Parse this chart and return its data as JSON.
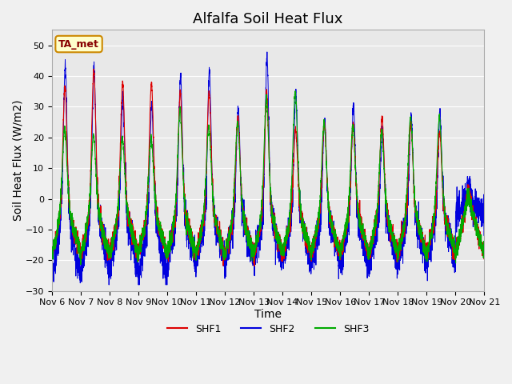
{
  "title": "Alfalfa Soil Heat Flux",
  "ylabel": "Soil Heat Flux (W/m2)",
  "xlabel": "Time",
  "ylim": [
    -30,
    55
  ],
  "yticks": [
    -30,
    -20,
    -10,
    0,
    10,
    20,
    30,
    40,
    50
  ],
  "xtick_labels": [
    "Nov 6",
    "Nov 7",
    "Nov 8",
    "Nov 9",
    "Nov 10",
    "Nov 11",
    "Nov 12",
    "Nov 13",
    "Nov 14",
    "Nov 15",
    "Nov 16",
    "Nov 17",
    "Nov 18",
    "Nov 19",
    "Nov 20",
    "Nov 21"
  ],
  "colors": {
    "SHF1": "#dd0000",
    "SHF2": "#0000dd",
    "SHF3": "#00aa00"
  },
  "legend_label_box": "TA_met",
  "legend_box_bg": "#ffffcc",
  "legend_box_edge": "#cc8800",
  "plot_bg": "#e8e8e8",
  "fig_bg": "#f0f0f0",
  "grid_color": "#ffffff",
  "title_fontsize": 13,
  "axis_label_fontsize": 10,
  "tick_fontsize": 8
}
